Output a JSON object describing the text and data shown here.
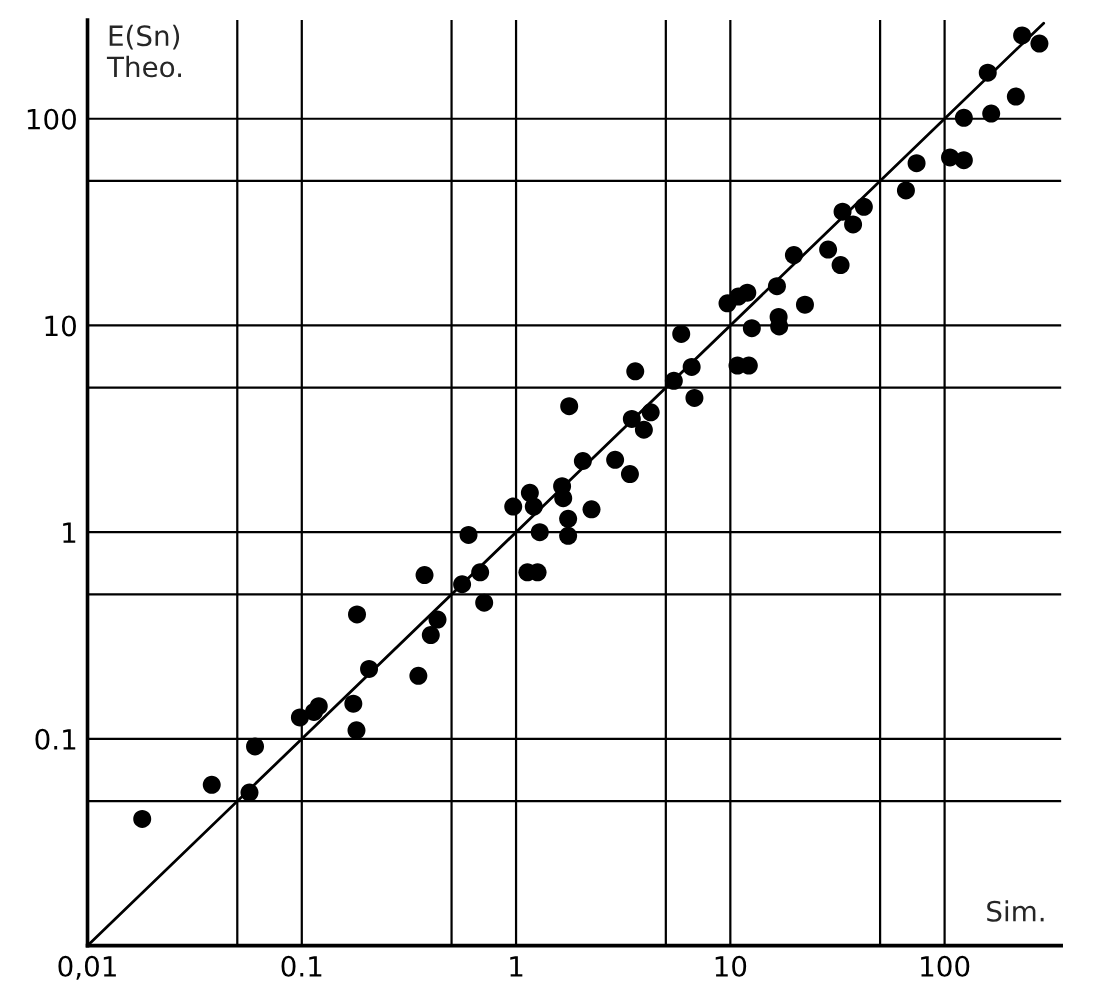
{
  "chart_data": {
    "type": "scatter",
    "xlabel": "Sim.",
    "ylabel": "E(Sn)\nTheo.",
    "log": "xy",
    "grid": true,
    "xlim": [
      0.01,
      350
    ],
    "ylim": [
      0.01,
      300
    ],
    "xticks": [
      {
        "value": 0.01,
        "label": "0,01"
      },
      {
        "value": 0.05,
        "label": null
      },
      0.1,
      {
        "value": 0.5,
        "label": null
      },
      1,
      {
        "value": 5,
        "label": null
      },
      10,
      {
        "value": 50,
        "label": null
      },
      100
    ],
    "yticks": [
      {
        "value": 0.01,
        "label": null
      },
      {
        "value": 0.05,
        "label": null
      },
      0.1,
      {
        "value": 0.5,
        "label": null
      },
      1,
      {
        "value": 5,
        "label": null
      },
      10,
      {
        "value": 50,
        "label": null
      },
      100
    ],
    "series": [
      {
        "marker": "circle",
        "color": "#000000",
        "x": [
          230,
          277,
          159,
          215,
          165,
          123,
          106,
          123,
          74,
          66,
          42,
          33.4,
          37.4,
          28.6,
          19.8,
          32.7,
          16.5,
          22.3,
          9.7,
          10.9,
          12.0,
          16.8,
          16.9,
          12.6,
          10.8,
          12.2,
          5.9,
          3.6,
          5.45,
          6.6,
          6.8,
          1.77,
          4.25,
          3.47,
          3.95,
          2.05,
          2.9,
          3.4,
          1.16,
          1.21,
          1.64,
          1.66,
          2.25,
          0.97,
          1.75,
          1.29,
          1.75,
          0.6,
          1.13,
          1.26,
          0.68,
          0.56,
          0.71,
          0.374,
          0.43,
          0.4,
          0.181,
          0.206,
          0.35,
          0.174,
          0.18,
          0.098,
          0.114,
          0.12,
          0.0605,
          0.038,
          0.057,
          0.018
        ],
        "values": [
          253,
          231,
          167,
          128,
          106,
          101,
          65,
          63,
          61,
          45,
          37.5,
          35.5,
          30.8,
          23.3,
          21.9,
          19.6,
          15.5,
          12.6,
          12.8,
          13.8,
          14.4,
          11.0,
          9.9,
          9.7,
          6.4,
          6.4,
          9.1,
          6.0,
          5.4,
          6.3,
          4.46,
          4.07,
          3.8,
          3.53,
          3.13,
          2.21,
          2.24,
          1.91,
          1.55,
          1.33,
          1.67,
          1.46,
          1.29,
          1.33,
          1.16,
          1.0,
          0.96,
          0.97,
          0.64,
          0.64,
          0.64,
          0.56,
          0.456,
          0.62,
          0.378,
          0.318,
          0.4,
          0.218,
          0.202,
          0.148,
          0.11,
          0.127,
          0.135,
          0.144,
          0.092,
          0.06,
          0.055,
          0.041
        ]
      },
      {
        "type": "line",
        "marker": "none",
        "color": "#000000",
        "x": [
          0.01,
          290
        ],
        "values": [
          0.01,
          290
        ]
      }
    ]
  }
}
